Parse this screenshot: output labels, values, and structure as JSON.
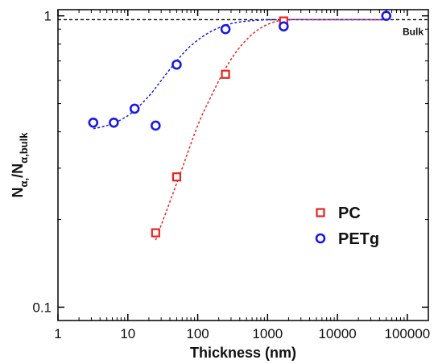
{
  "chart_data": {
    "type": "scatter",
    "title": "",
    "xlabel": "Thickness (nm)",
    "ylabel": {
      "main": "N",
      "sub1": "α,",
      "sep": "/N",
      "sub2": "α,bulk"
    },
    "xscale": "log",
    "yscale": "log",
    "xlim": [
      1,
      200000
    ],
    "ylim": [
      0.09,
      1.05
    ],
    "x_ticks": [
      {
        "value": 1,
        "label": "1"
      },
      {
        "value": 10,
        "label": "10"
      },
      {
        "value": 100,
        "label": "100"
      },
      {
        "value": 1000,
        "label": "1000"
      },
      {
        "value": 10000,
        "label": "10000"
      },
      {
        "value": 100000,
        "label": "100000"
      }
    ],
    "y_ticks": [
      {
        "value": 0.1,
        "label": "0.1"
      },
      {
        "value": 1,
        "label": "1"
      }
    ],
    "reference_line": {
      "y": 0.97,
      "label": "Bulk",
      "color": "#000000"
    },
    "series": [
      {
        "name": "PC",
        "marker": "square",
        "color": "#e8231f",
        "points": [
          {
            "x": 25,
            "y": 0.18
          },
          {
            "x": 50,
            "y": 0.28
          },
          {
            "x": 250,
            "y": 0.63
          },
          {
            "x": 1700,
            "y": 0.96
          }
        ],
        "fit": [
          {
            "x": 25,
            "y": 0.17
          },
          {
            "x": 40,
            "y": 0.23
          },
          {
            "x": 60,
            "y": 0.3
          },
          {
            "x": 100,
            "y": 0.42
          },
          {
            "x": 150,
            "y": 0.52
          },
          {
            "x": 250,
            "y": 0.66
          },
          {
            "x": 400,
            "y": 0.78
          },
          {
            "x": 700,
            "y": 0.89
          },
          {
            "x": 1200,
            "y": 0.95
          },
          {
            "x": 2000,
            "y": 0.97
          },
          {
            "x": 5000,
            "y": 0.97
          },
          {
            "x": 50000,
            "y": 0.97
          }
        ]
      },
      {
        "name": "PETg",
        "marker": "circle",
        "color": "#1a1ae6",
        "points": [
          {
            "x": 3.2,
            "y": 0.43
          },
          {
            "x": 6.3,
            "y": 0.43
          },
          {
            "x": 12.5,
            "y": 0.48
          },
          {
            "x": 25,
            "y": 0.42
          },
          {
            "x": 50,
            "y": 0.68
          },
          {
            "x": 250,
            "y": 0.9
          },
          {
            "x": 1700,
            "y": 0.92
          },
          {
            "x": 50000,
            "y": 1.0
          }
        ],
        "fit": [
          {
            "x": 3.2,
            "y": 0.41
          },
          {
            "x": 5,
            "y": 0.42
          },
          {
            "x": 8,
            "y": 0.44
          },
          {
            "x": 12,
            "y": 0.47
          },
          {
            "x": 20,
            "y": 0.53
          },
          {
            "x": 30,
            "y": 0.6
          },
          {
            "x": 50,
            "y": 0.7
          },
          {
            "x": 80,
            "y": 0.79
          },
          {
            "x": 150,
            "y": 0.88
          },
          {
            "x": 300,
            "y": 0.94
          },
          {
            "x": 700,
            "y": 0.965
          },
          {
            "x": 2000,
            "y": 0.97
          },
          {
            "x": 50000,
            "y": 0.97
          }
        ]
      }
    ],
    "legend": {
      "placement": "lower-right",
      "entries": [
        {
          "name": "PC",
          "marker": "square",
          "color": "#e8231f"
        },
        {
          "name": "PETg",
          "marker": "circle",
          "color": "#1a1ae6"
        }
      ]
    },
    "grid": false
  }
}
